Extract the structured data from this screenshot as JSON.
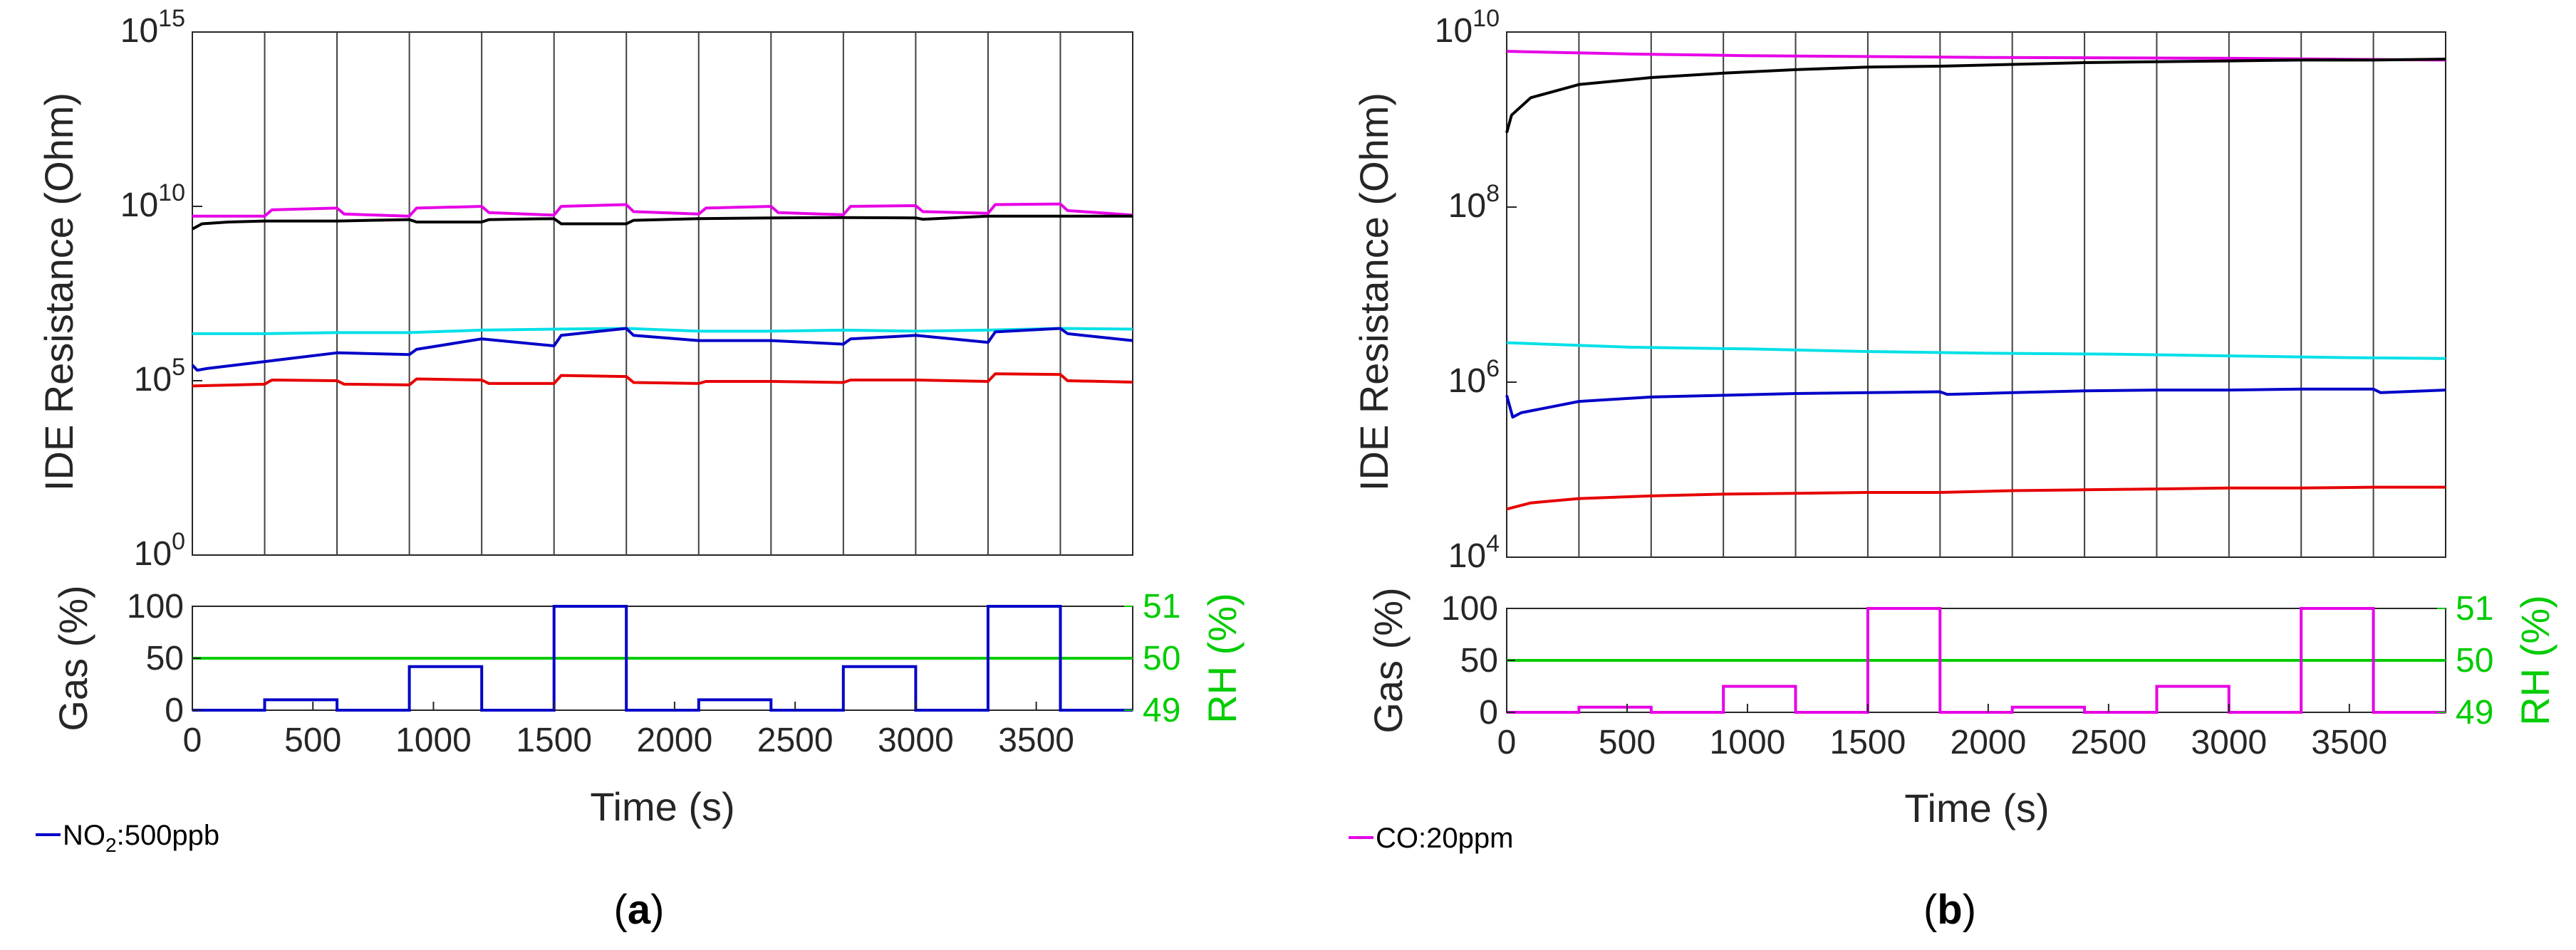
{
  "chart_data": [
    {
      "panel": "a",
      "panel_label": {
        "open": "(",
        "letter": "a",
        "close": ")"
      },
      "legend": {
        "gas": "NO",
        "subscript": "2",
        "suffix": ":500ppb",
        "color": "#0000c8"
      },
      "resistance_plot": {
        "type": "line",
        "ylabel": "IDE Resistance (Ohm)",
        "yscale": "log",
        "ylim_exponent": [
          0,
          15
        ],
        "ytick_exponents": [
          0,
          5,
          10,
          15
        ],
        "xlim": [
          0,
          3900
        ],
        "vertical_lines": [
          300,
          600,
          900,
          1200,
          1500,
          1800,
          2100,
          2400,
          2700,
          3000,
          3300,
          3600
        ],
        "series": [
          {
            "name": "magenta",
            "color": "#e600e6",
            "points": [
              [
                0,
                9.72
              ],
              [
                300,
                9.72
              ],
              [
                330,
                9.9
              ],
              [
                600,
                9.95
              ],
              [
                630,
                9.78
              ],
              [
                900,
                9.72
              ],
              [
                930,
                9.95
              ],
              [
                1200,
                10.0
              ],
              [
                1230,
                9.82
              ],
              [
                1500,
                9.75
              ],
              [
                1530,
                10.0
              ],
              [
                1800,
                10.05
              ],
              [
                1830,
                9.85
              ],
              [
                2100,
                9.78
              ],
              [
                2130,
                9.95
              ],
              [
                2400,
                10.0
              ],
              [
                2430,
                9.82
              ],
              [
                2700,
                9.76
              ],
              [
                2730,
                10.0
              ],
              [
                3000,
                10.02
              ],
              [
                3030,
                9.85
              ],
              [
                3300,
                9.8
              ],
              [
                3330,
                10.05
              ],
              [
                3600,
                10.07
              ],
              [
                3630,
                9.88
              ],
              [
                3900,
                9.75
              ]
            ]
          },
          {
            "name": "black",
            "color": "#000000",
            "points": [
              [
                0,
                9.35
              ],
              [
                40,
                9.5
              ],
              [
                150,
                9.55
              ],
              [
                300,
                9.58
              ],
              [
                600,
                9.58
              ],
              [
                900,
                9.62
              ],
              [
                930,
                9.55
              ],
              [
                1200,
                9.55
              ],
              [
                1230,
                9.62
              ],
              [
                1500,
                9.65
              ],
              [
                1530,
                9.5
              ],
              [
                1800,
                9.5
              ],
              [
                1830,
                9.6
              ],
              [
                2100,
                9.65
              ],
              [
                2400,
                9.67
              ],
              [
                2700,
                9.68
              ],
              [
                3000,
                9.67
              ],
              [
                3030,
                9.63
              ],
              [
                3300,
                9.72
              ],
              [
                3900,
                9.72
              ]
            ]
          },
          {
            "name": "cyan",
            "color": "#00e0e6",
            "points": [
              [
                0,
                6.35
              ],
              [
                300,
                6.35
              ],
              [
                600,
                6.38
              ],
              [
                900,
                6.38
              ],
              [
                1200,
                6.45
              ],
              [
                1500,
                6.48
              ],
              [
                1800,
                6.5
              ],
              [
                2100,
                6.42
              ],
              [
                2400,
                6.42
              ],
              [
                2700,
                6.45
              ],
              [
                3000,
                6.42
              ],
              [
                3300,
                6.45
              ],
              [
                3600,
                6.5
              ],
              [
                3900,
                6.48
              ]
            ]
          },
          {
            "name": "blue",
            "color": "#0000c8",
            "points": [
              [
                0,
                5.45
              ],
              [
                20,
                5.3
              ],
              [
                60,
                5.35
              ],
              [
                300,
                5.55
              ],
              [
                600,
                5.8
              ],
              [
                900,
                5.75
              ],
              [
                930,
                5.9
              ],
              [
                1200,
                6.2
              ],
              [
                1500,
                6.0
              ],
              [
                1530,
                6.3
              ],
              [
                1800,
                6.5
              ],
              [
                1830,
                6.3
              ],
              [
                2100,
                6.15
              ],
              [
                2400,
                6.15
              ],
              [
                2700,
                6.05
              ],
              [
                2730,
                6.2
              ],
              [
                3000,
                6.3
              ],
              [
                3300,
                6.1
              ],
              [
                3330,
                6.4
              ],
              [
                3600,
                6.5
              ],
              [
                3630,
                6.35
              ],
              [
                3900,
                6.15
              ]
            ]
          },
          {
            "name": "red",
            "color": "#e60000",
            "points": [
              [
                0,
                4.85
              ],
              [
                300,
                4.9
              ],
              [
                330,
                5.02
              ],
              [
                600,
                5.0
              ],
              [
                630,
                4.9
              ],
              [
                900,
                4.88
              ],
              [
                930,
                5.05
              ],
              [
                1200,
                5.02
              ],
              [
                1230,
                4.92
              ],
              [
                1500,
                4.92
              ],
              [
                1530,
                5.15
              ],
              [
                1800,
                5.12
              ],
              [
                1830,
                4.95
              ],
              [
                2100,
                4.92
              ],
              [
                2130,
                4.98
              ],
              [
                2400,
                4.98
              ],
              [
                2700,
                4.95
              ],
              [
                2730,
                5.02
              ],
              [
                3000,
                5.02
              ],
              [
                3300,
                4.98
              ],
              [
                3330,
                5.2
              ],
              [
                3600,
                5.18
              ],
              [
                3630,
                5.0
              ],
              [
                3900,
                4.96
              ]
            ]
          }
        ]
      },
      "gas_plot": {
        "type": "line",
        "ylabel": "Gas (%)",
        "ylim": [
          0,
          100
        ],
        "yticks": [
          "0",
          "50",
          "100"
        ],
        "xlabel": "Time (s)",
        "xlim": [
          0,
          3900
        ],
        "xticks": [
          "0",
          "500",
          "1000",
          "1500",
          "2000",
          "2500",
          "3000",
          "3500"
        ],
        "right_axis": {
          "label": "RH (%)",
          "ylim": [
            49,
            51
          ],
          "yticks": [
            "49",
            "50",
            "51"
          ],
          "color": "#00cc00",
          "value": 50
        },
        "gas_series": {
          "color": "#0000c8",
          "pulses": [
            [
              300,
              600,
              10
            ],
            [
              900,
              1200,
              42
            ],
            [
              1500,
              1800,
              100
            ],
            [
              2100,
              2400,
              10
            ],
            [
              2700,
              3000,
              42
            ],
            [
              3300,
              3600,
              100
            ]
          ]
        }
      }
    },
    {
      "panel": "b",
      "panel_label": {
        "open": "(",
        "letter": "b",
        "close": ")"
      },
      "legend": {
        "gas": "CO:20ppm",
        "color": "#e600e6"
      },
      "resistance_plot": {
        "type": "line",
        "ylabel": "IDE Resistance (Ohm)",
        "yscale": "log",
        "ylim_exponent": [
          4,
          10
        ],
        "ytick_exponents": [
          4,
          6,
          8,
          10
        ],
        "xlim": [
          0,
          3900
        ],
        "vertical_lines": [
          300,
          600,
          900,
          1200,
          1500,
          1800,
          2100,
          2400,
          2700,
          3000,
          3300,
          3600
        ],
        "series": [
          {
            "name": "magenta",
            "color": "#e600e6",
            "points": [
              [
                0,
                9.78
              ],
              [
                500,
                9.75
              ],
              [
                1000,
                9.73
              ],
              [
                2000,
                9.71
              ],
              [
                3000,
                9.7
              ],
              [
                3900,
                9.68
              ]
            ]
          },
          {
            "name": "black",
            "color": "#000000",
            "points": [
              [
                0,
                8.85
              ],
              [
                20,
                9.05
              ],
              [
                100,
                9.25
              ],
              [
                300,
                9.4
              ],
              [
                600,
                9.48
              ],
              [
                900,
                9.53
              ],
              [
                1200,
                9.57
              ],
              [
                1500,
                9.6
              ],
              [
                1800,
                9.61
              ],
              [
                2100,
                9.63
              ],
              [
                2400,
                9.65
              ],
              [
                2700,
                9.66
              ],
              [
                3000,
                9.67
              ],
              [
                3300,
                9.68
              ],
              [
                3600,
                9.68
              ],
              [
                3900,
                9.69
              ]
            ]
          },
          {
            "name": "cyan",
            "color": "#00e0e6",
            "points": [
              [
                0,
                6.45
              ],
              [
                500,
                6.4
              ],
              [
                1000,
                6.38
              ],
              [
                1500,
                6.35
              ],
              [
                2000,
                6.33
              ],
              [
                2500,
                6.32
              ],
              [
                3000,
                6.3
              ],
              [
                3500,
                6.28
              ],
              [
                3900,
                6.27
              ]
            ]
          },
          {
            "name": "blue",
            "color": "#0000c8",
            "points": [
              [
                0,
                5.85
              ],
              [
                25,
                5.6
              ],
              [
                60,
                5.65
              ],
              [
                300,
                5.78
              ],
              [
                600,
                5.83
              ],
              [
                900,
                5.85
              ],
              [
                1200,
                5.87
              ],
              [
                1500,
                5.88
              ],
              [
                1800,
                5.89
              ],
              [
                1830,
                5.86
              ],
              [
                2100,
                5.88
              ],
              [
                2400,
                5.9
              ],
              [
                2700,
                5.91
              ],
              [
                3000,
                5.91
              ],
              [
                3300,
                5.92
              ],
              [
                3600,
                5.92
              ],
              [
                3630,
                5.88
              ],
              [
                3900,
                5.91
              ]
            ]
          },
          {
            "name": "red",
            "color": "#e60000",
            "points": [
              [
                0,
                4.55
              ],
              [
                100,
                4.62
              ],
              [
                300,
                4.67
              ],
              [
                600,
                4.7
              ],
              [
                900,
                4.72
              ],
              [
                1200,
                4.73
              ],
              [
                1500,
                4.74
              ],
              [
                1800,
                4.74
              ],
              [
                2100,
                4.76
              ],
              [
                2400,
                4.77
              ],
              [
                2700,
                4.78
              ],
              [
                3000,
                4.79
              ],
              [
                3300,
                4.79
              ],
              [
                3600,
                4.8
              ],
              [
                3900,
                4.8
              ]
            ]
          }
        ]
      },
      "gas_plot": {
        "type": "line",
        "ylabel": "Gas (%)",
        "ylim": [
          0,
          100
        ],
        "yticks": [
          "0",
          "50",
          "100"
        ],
        "xlabel": "Time (s)",
        "xlim": [
          0,
          3900
        ],
        "xticks": [
          "0",
          "500",
          "1000",
          "1500",
          "2000",
          "2500",
          "3000",
          "3500"
        ],
        "right_axis": {
          "label": "RH (%)",
          "ylim": [
            49,
            51
          ],
          "yticks": [
            "49",
            "50",
            "51"
          ],
          "color": "#00cc00",
          "value": 50
        },
        "gas_series": {
          "color": "#e600e6",
          "pulses": [
            [
              300,
              600,
              5
            ],
            [
              900,
              1200,
              25
            ],
            [
              1500,
              1800,
              100
            ],
            [
              2100,
              2400,
              5
            ],
            [
              2700,
              3000,
              25
            ],
            [
              3300,
              3600,
              100
            ]
          ]
        }
      }
    }
  ]
}
